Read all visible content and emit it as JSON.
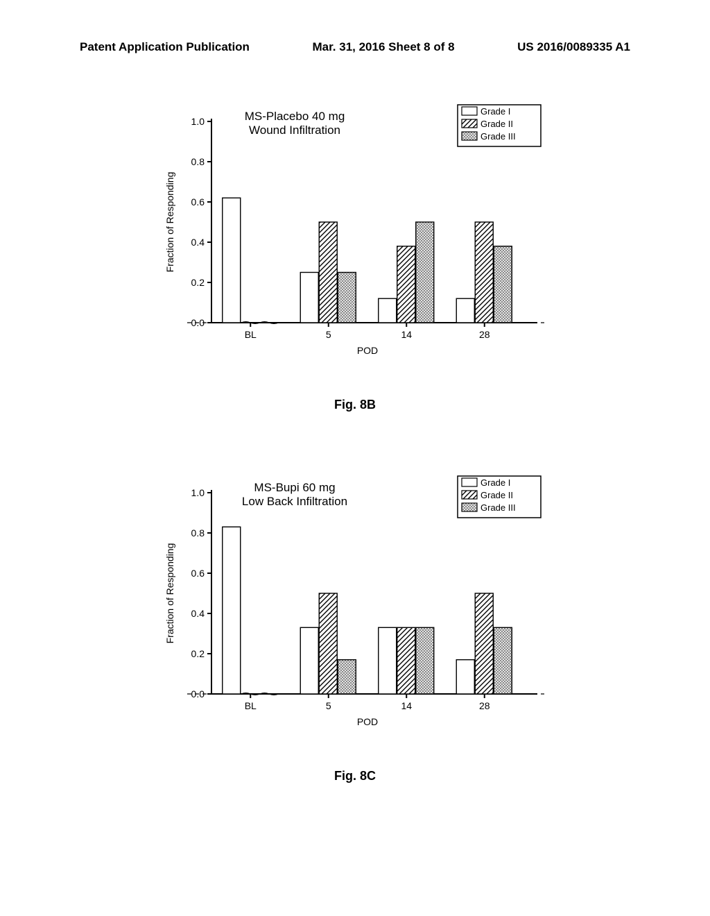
{
  "header": {
    "left": "Patent Application Publication",
    "center": "Mar. 31, 2016  Sheet 8 of 8",
    "right": "US 2016/0089335 A1"
  },
  "chart8b": {
    "type": "bar",
    "title_line1": "MS-Placebo 40 mg",
    "title_line2": "Wound Infiltration",
    "title_fontsize": 17,
    "ylabel": "Fraction of Responding",
    "label_fontsize": 14,
    "xlabel": "POD",
    "ylim": [
      0.0,
      1.0
    ],
    "ytick_step": 0.2,
    "yticks": [
      "0.0",
      "0.2",
      "0.4",
      "0.6",
      "0.8",
      "1.0"
    ],
    "categories": [
      "BL",
      "5",
      "14",
      "28"
    ],
    "series": [
      {
        "name": "Grade I",
        "pattern": "none",
        "values": [
          0.62,
          0.25,
          0.12,
          0.12
        ]
      },
      {
        "name": "Grade II",
        "pattern": "diag",
        "values": [
          0.0,
          0.5,
          0.38,
          0.5
        ]
      },
      {
        "name": "Grade III",
        "pattern": "cross",
        "values": [
          0.0,
          0.25,
          0.5,
          0.38
        ]
      }
    ],
    "bar_group_width": 0.72,
    "bar_width": 0.24,
    "background_color": "#ffffff",
    "axis_color": "#000000",
    "legend_items": [
      "Grade I",
      "Grade II",
      "Grade III"
    ],
    "caption": "Fig. 8B"
  },
  "chart8c": {
    "type": "bar",
    "title_line1": "MS-Bupi 60 mg",
    "title_line2": "Low Back Infiltration",
    "title_fontsize": 17,
    "ylabel": "Fraction of Responding",
    "label_fontsize": 14,
    "xlabel": "POD",
    "ylim": [
      0.0,
      1.0
    ],
    "ytick_step": 0.2,
    "yticks": [
      "0.0",
      "0.2",
      "0.4",
      "0.6",
      "0.8",
      "1.0"
    ],
    "categories": [
      "BL",
      "5",
      "14",
      "28"
    ],
    "series": [
      {
        "name": "Grade I",
        "pattern": "none",
        "values": [
          0.83,
          0.33,
          0.33,
          0.17
        ]
      },
      {
        "name": "Grade II",
        "pattern": "diag",
        "values": [
          0.0,
          0.5,
          0.33,
          0.5
        ]
      },
      {
        "name": "Grade III",
        "pattern": "cross",
        "values": [
          0.0,
          0.17,
          0.33,
          0.33
        ]
      }
    ],
    "bar_group_width": 0.72,
    "bar_width": 0.24,
    "background_color": "#ffffff",
    "axis_color": "#000000",
    "legend_items": [
      "Grade I",
      "Grade II",
      "Grade III"
    ],
    "caption": "Fig. 8C"
  }
}
